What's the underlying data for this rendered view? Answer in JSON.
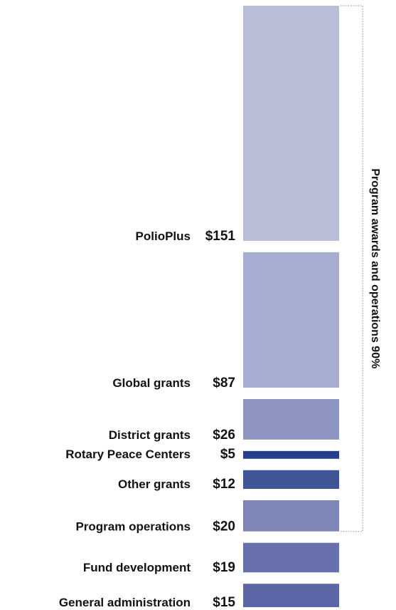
{
  "chart_data": {
    "type": "bar",
    "orientation": "stacked-vertical",
    "categories": [
      "PolioPlus",
      "Global grants",
      "District grants",
      "Rotary Peace Centers",
      "Other grants",
      "Program operations",
      "Fund development",
      "General administration"
    ],
    "values": [
      151,
      87,
      26,
      5,
      12,
      20,
      19,
      15
    ],
    "value_labels": [
      "$151",
      "$87",
      "$26",
      "$5",
      "$12",
      "$20",
      "$19",
      "$15"
    ],
    "colors": [
      "#b9bed6",
      "#a6add0",
      "#8d95c0",
      "#263f8c",
      "#3f5596",
      "#7d86b7",
      "#6770aa",
      "#5c66a4"
    ],
    "bracket": {
      "label": "Program awards and operations  90%",
      "covers": [
        "PolioPlus",
        "Global grants",
        "District grants",
        "Rotary Peace Centers",
        "Other grants",
        "Program operations"
      ]
    }
  }
}
